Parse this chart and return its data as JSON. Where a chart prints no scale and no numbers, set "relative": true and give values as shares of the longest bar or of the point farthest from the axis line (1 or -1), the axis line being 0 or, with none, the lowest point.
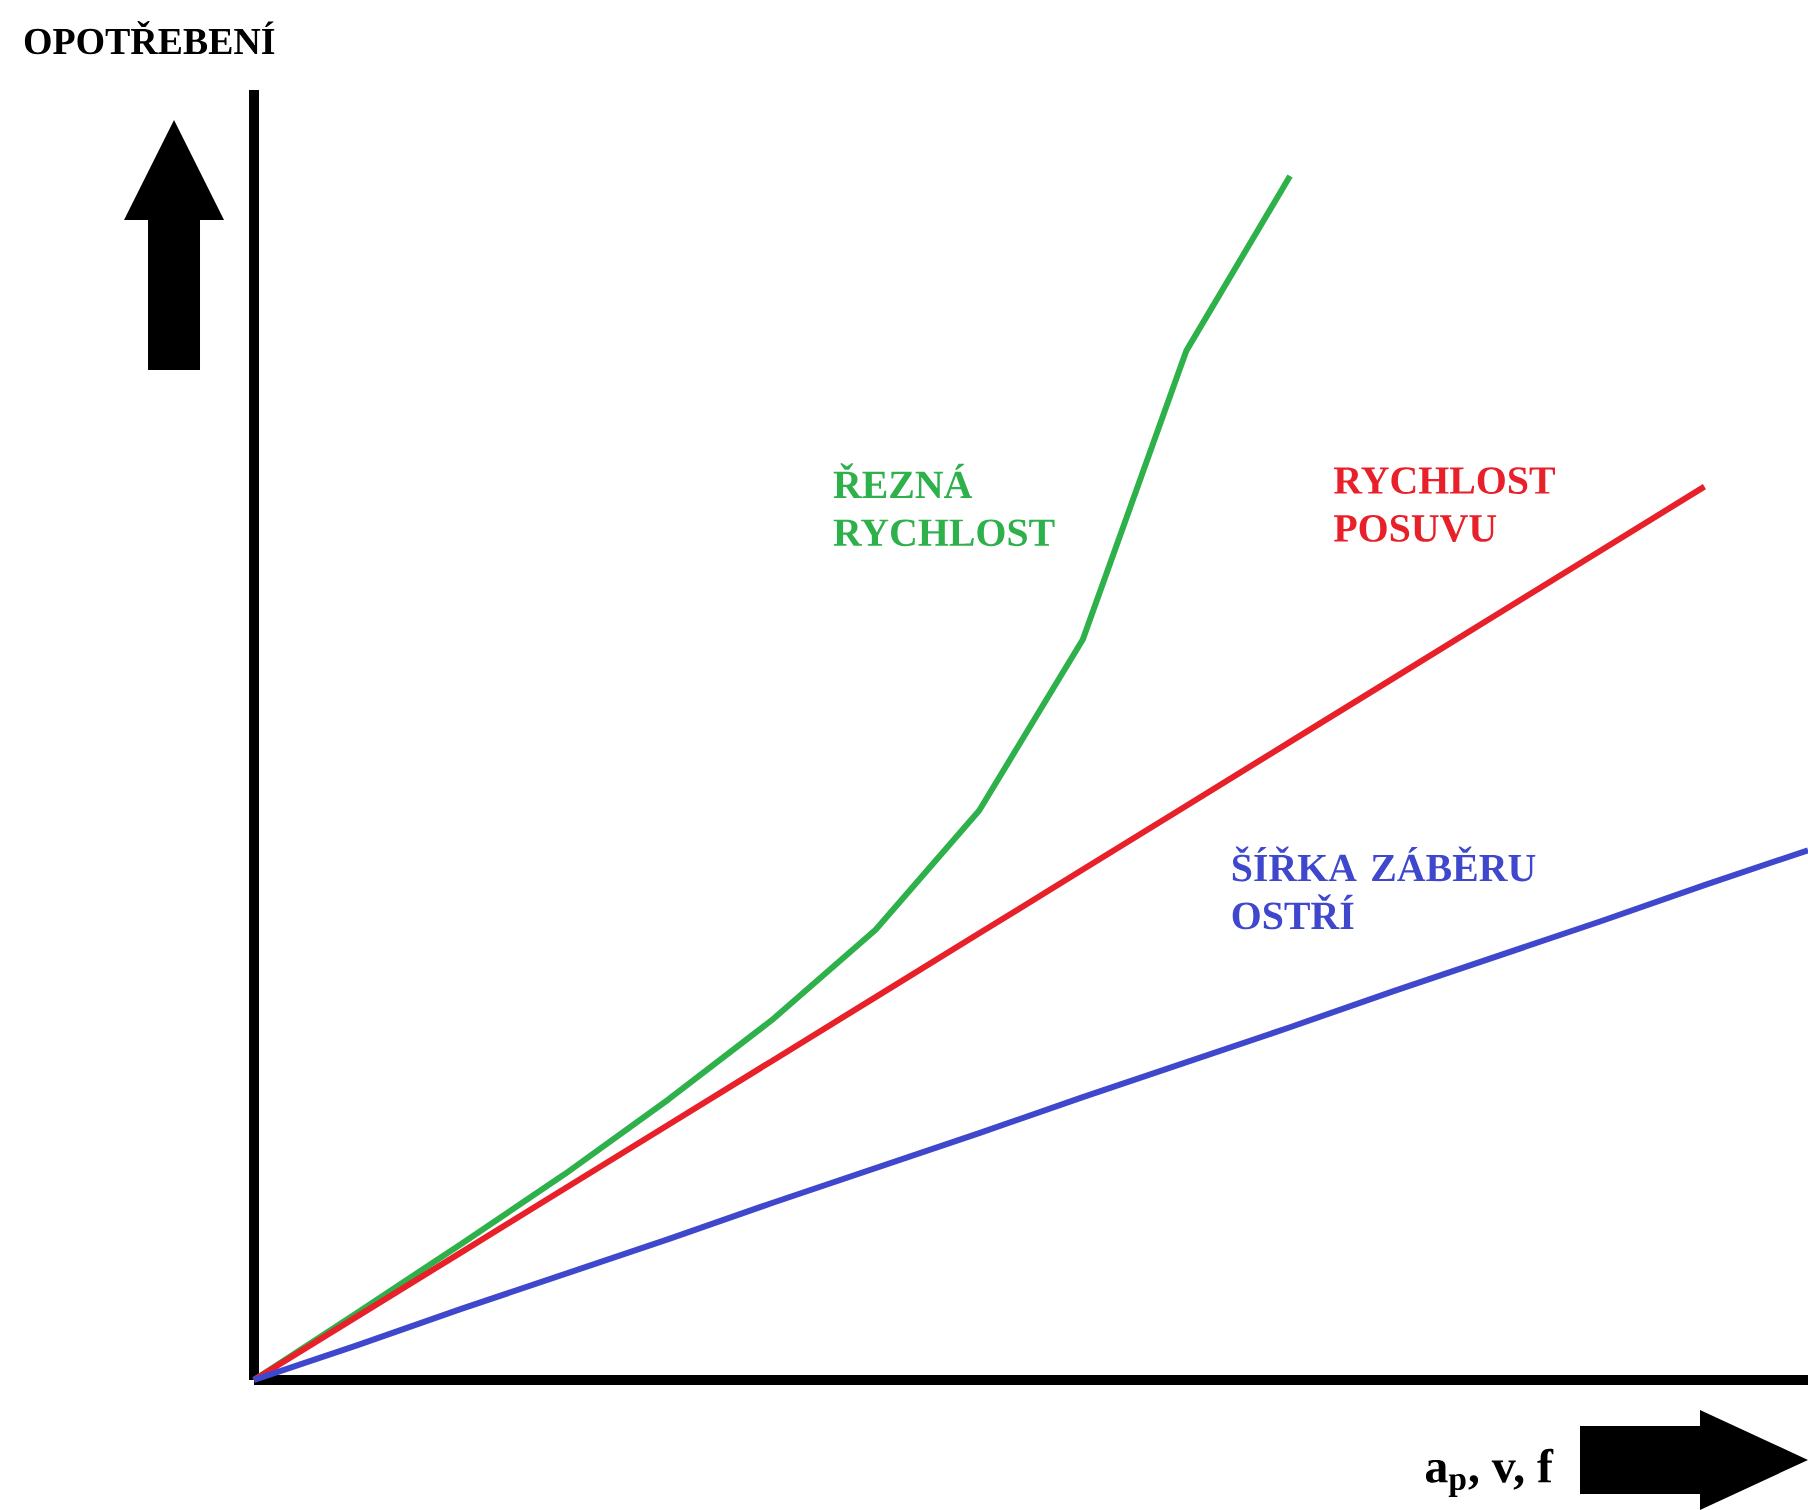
{
  "chart_data": {
    "type": "line",
    "relative": true,
    "xlabel": "a$_{p}$, v, f",
    "ylabel": "OPOTŘEBENÍ",
    "categories": [
      null,
      null,
      null,
      null,
      null,
      null,
      null,
      null,
      null,
      null,
      null,
      null,
      null,
      null,
      null,
      null
    ],
    "series": [
      {
        "name": "ŘEZNÁ RYCHLOST",
        "color": "#2eb14b",
        "values": [
          0,
          0.056,
          0.113,
          0.171,
          0.233,
          0.299,
          0.374,
          0.473,
          0.615,
          0.855,
          1,
          null,
          null,
          null,
          null,
          null
        ]
      },
      {
        "name": "RYCHLOST POSUVU",
        "color": "#e8202a",
        "values": [
          0,
          0.053,
          0.106,
          0.159,
          0.212,
          0.265,
          0.318,
          0.371,
          0.424,
          0.477,
          0.53,
          0.583,
          0.636,
          0.689,
          0.742,
          null
        ]
      },
      {
        "name": "ŠÍŘKA ZÁBĚRU OSTŘÍ",
        "color": "#3f48cc",
        "values": [
          0,
          0.029,
          0.059,
          0.088,
          0.117,
          0.147,
          0.176,
          0.205,
          0.235,
          0.264,
          0.293,
          0.323,
          0.352,
          0.381,
          0.411,
          0.44
        ]
      }
    ],
    "marker": "none",
    "line_style": "solid"
  }
}
